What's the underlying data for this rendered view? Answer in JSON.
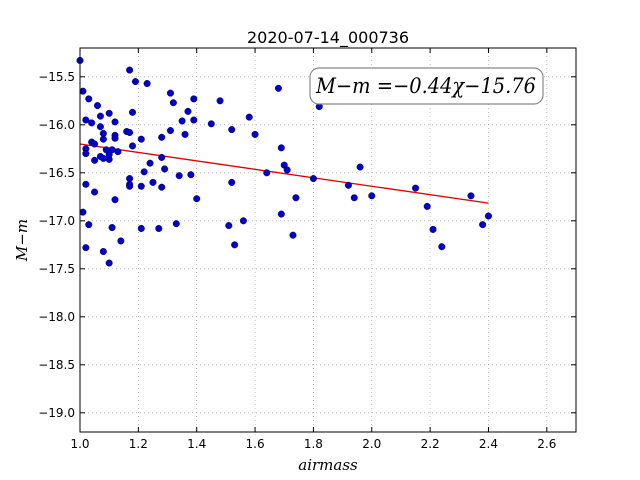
{
  "chart_data": {
    "type": "scatter",
    "title": "2020-07-14_000736",
    "xlabel": "airmass",
    "ylabel": "M−m",
    "xlim": [
      1.0,
      2.7
    ],
    "ylim": [
      -15.2,
      -19.2
    ],
    "y_inverted": true,
    "grid": true,
    "xticks": [
      1.0,
      1.2,
      1.4,
      1.6,
      1.8,
      2.0,
      2.2,
      2.4,
      2.6
    ],
    "xtick_labels": [
      "1.0",
      "1.2",
      "1.4",
      "1.6",
      "1.8",
      "2.0",
      "2.2",
      "2.4",
      "2.6"
    ],
    "yticks": [
      -15.5,
      -16.0,
      -16.5,
      -17.0,
      -17.5,
      -18.0,
      -18.5,
      -19.0
    ],
    "ytick_labels": [
      "−15.5",
      "−16.0",
      "−16.5",
      "−17.0",
      "−17.5",
      "−18.0",
      "−18.5",
      "−19.0"
    ],
    "annotation": "M−m =−0.44χ−15.76",
    "fit": {
      "slope": -0.44,
      "intercept": -15.76,
      "x_range": [
        1.0,
        2.4
      ],
      "color": "#dd0000"
    },
    "point_color": "#0000cc",
    "series": [
      {
        "points": [
          [
            1.0,
            -15.33
          ],
          [
            1.01,
            -16.91
          ],
          [
            1.01,
            -15.65
          ],
          [
            1.02,
            -15.95
          ],
          [
            1.02,
            -16.25
          ],
          [
            1.02,
            -16.3
          ],
          [
            1.02,
            -17.28
          ],
          [
            1.02,
            -16.62
          ],
          [
            1.03,
            -17.04
          ],
          [
            1.03,
            -15.73
          ],
          [
            1.04,
            -15.98
          ],
          [
            1.04,
            -16.18
          ],
          [
            1.05,
            -16.37
          ],
          [
            1.05,
            -16.7
          ],
          [
            1.05,
            -16.2
          ],
          [
            1.06,
            -15.8
          ],
          [
            1.07,
            -16.33
          ],
          [
            1.07,
            -15.91
          ],
          [
            1.07,
            -16.02
          ],
          [
            1.08,
            -16.09
          ],
          [
            1.08,
            -16.35
          ],
          [
            1.08,
            -16.15
          ],
          [
            1.08,
            -17.32
          ],
          [
            1.09,
            -16.26
          ],
          [
            1.1,
            -16.36
          ],
          [
            1.1,
            -15.88
          ],
          [
            1.1,
            -16.31
          ],
          [
            1.1,
            -17.44
          ],
          [
            1.11,
            -16.26
          ],
          [
            1.11,
            -17.07
          ],
          [
            1.12,
            -15.97
          ],
          [
            1.12,
            -16.11
          ],
          [
            1.12,
            -16.78
          ],
          [
            1.12,
            -16.14
          ],
          [
            1.13,
            -16.28
          ],
          [
            1.14,
            -17.21
          ],
          [
            1.16,
            -16.07
          ],
          [
            1.17,
            -16.56
          ],
          [
            1.17,
            -16.62
          ],
          [
            1.17,
            -15.43
          ],
          [
            1.17,
            -16.64
          ],
          [
            1.17,
            -16.08
          ],
          [
            1.18,
            -16.22
          ],
          [
            1.18,
            -15.87
          ],
          [
            1.19,
            -15.55
          ],
          [
            1.21,
            -16.15
          ],
          [
            1.21,
            -16.64
          ],
          [
            1.21,
            -17.08
          ],
          [
            1.22,
            -16.49
          ],
          [
            1.23,
            -15.57
          ],
          [
            1.24,
            -16.4
          ],
          [
            1.25,
            -16.6
          ],
          [
            1.27,
            -17.08
          ],
          [
            1.28,
            -16.13
          ],
          [
            1.28,
            -16.34
          ],
          [
            1.28,
            -16.65
          ],
          [
            1.29,
            -16.46
          ],
          [
            1.31,
            -16.06
          ],
          [
            1.31,
            -15.67
          ],
          [
            1.32,
            -15.77
          ],
          [
            1.33,
            -17.03
          ],
          [
            1.34,
            -16.53
          ],
          [
            1.35,
            -15.96
          ],
          [
            1.36,
            -16.1
          ],
          [
            1.37,
            -15.86
          ],
          [
            1.38,
            -16.52
          ],
          [
            1.39,
            -15.95
          ],
          [
            1.39,
            -15.73
          ],
          [
            1.4,
            -16.77
          ],
          [
            1.45,
            -15.99
          ],
          [
            1.48,
            -15.75
          ],
          [
            1.51,
            -17.05
          ],
          [
            1.52,
            -16.6
          ],
          [
            1.52,
            -16.05
          ],
          [
            1.53,
            -17.25
          ],
          [
            1.56,
            -17.0
          ],
          [
            1.58,
            -15.92
          ],
          [
            1.6,
            -16.1
          ],
          [
            1.64,
            -16.5
          ],
          [
            1.68,
            -15.62
          ],
          [
            1.69,
            -16.93
          ],
          [
            1.69,
            -16.24
          ],
          [
            1.7,
            -16.42
          ],
          [
            1.71,
            -16.47
          ],
          [
            1.73,
            -17.15
          ],
          [
            1.74,
            -16.76
          ],
          [
            1.8,
            -16.56
          ],
          [
            1.82,
            -15.81
          ],
          [
            1.92,
            -16.63
          ],
          [
            1.94,
            -16.76
          ],
          [
            1.96,
            -16.44
          ],
          [
            2.0,
            -16.74
          ],
          [
            2.15,
            -16.66
          ],
          [
            2.19,
            -16.85
          ],
          [
            2.21,
            -17.09
          ],
          [
            2.24,
            -17.27
          ],
          [
            2.34,
            -16.74
          ],
          [
            2.38,
            -17.04
          ],
          [
            2.4,
            -16.95
          ]
        ]
      }
    ]
  }
}
